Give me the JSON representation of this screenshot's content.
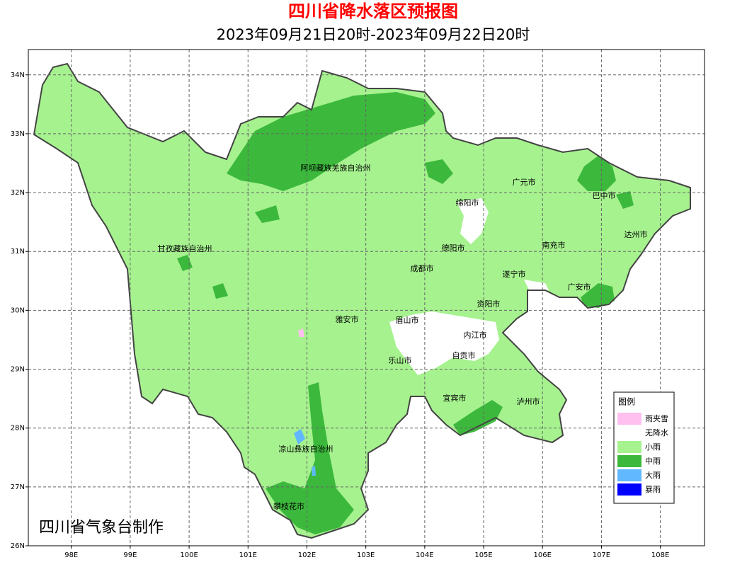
{
  "header": {
    "title": "四川省降水落区预报图",
    "subtitle": "2023年09月21日20时-2023年09月22日20时"
  },
  "map": {
    "xlim": [
      97.27,
      108.75
    ],
    "ylim": [
      26,
      34.43
    ],
    "xticks": [
      {
        "value": 98,
        "label": "98E"
      },
      {
        "value": 99,
        "label": "99E"
      },
      {
        "value": 100,
        "label": "100E"
      },
      {
        "value": 101,
        "label": "101E"
      },
      {
        "value": 102,
        "label": "102E"
      },
      {
        "value": 103,
        "label": "103E"
      },
      {
        "value": 104,
        "label": "104E"
      },
      {
        "value": 105,
        "label": "105E"
      },
      {
        "value": 106,
        "label": "106E"
      },
      {
        "value": 107,
        "label": "107E"
      },
      {
        "value": 108,
        "label": "108E"
      }
    ],
    "yticks": [
      {
        "value": 26,
        "label": "26N"
      },
      {
        "value": 27,
        "label": "27N"
      },
      {
        "value": 28,
        "label": "28N"
      },
      {
        "value": 29,
        "label": "29N"
      },
      {
        "value": 30,
        "label": "30N"
      },
      {
        "value": 31,
        "label": "31N"
      },
      {
        "value": 32,
        "label": "32N"
      },
      {
        "value": 33,
        "label": "33N"
      },
      {
        "value": 34,
        "label": "34N"
      }
    ],
    "grid": true,
    "regions": [
      "阿坝藏族羌族自治州",
      "绵阳市",
      "广元市",
      "巴中市",
      "甘孜藏族自治州",
      "德阳市",
      "南充市",
      "达州市",
      "成都市",
      "遂宁市",
      "广安市",
      "资阳市",
      "雅安市",
      "眉山市",
      "内江市",
      "自贡市",
      "乐山市",
      "宜宾市",
      "泸州市",
      "凉山彝族自治州",
      "攀枝花市"
    ]
  },
  "legend": {
    "title": "图例",
    "items": [
      {
        "label": "雨夹雪",
        "color": "#ffc0f0"
      },
      {
        "label": "无降水",
        "color": "#ffffff"
      },
      {
        "label": "小雨",
        "color": "#a6f28f"
      },
      {
        "label": "中雨",
        "color": "#3cb93c"
      },
      {
        "label": "大雨",
        "color": "#61b8ff"
      },
      {
        "label": "暴雨",
        "color": "#0000fe"
      }
    ]
  },
  "footer": {
    "credit": "四川省气象台制作"
  }
}
